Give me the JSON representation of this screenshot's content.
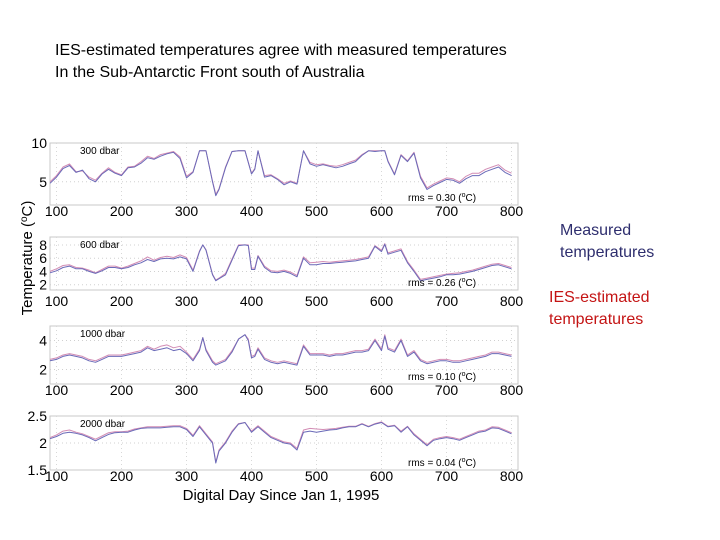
{
  "title": {
    "line1": "IES-estimated temperatures agree with measured temperatures",
    "line2": "In the Sub-Antarctic Front south of Australia"
  },
  "legend": {
    "measured_line1": "Measured",
    "measured_line2": "temperatures",
    "measured_color": "#2e2e6e",
    "ies_line1": "IES-estimated",
    "ies_line2": "temperatures",
    "ies_color": "#c41414"
  },
  "axes": {
    "ylabel": "Temperature (°C)",
    "xlabel": "Digital Day Since Jan 1, 1995"
  },
  "chart_data": [
    {
      "type": "line",
      "title": "300 dbar",
      "annotation": "rms = 0.30 (°C)",
      "xlabel": "Digital Day Since Jan 1, 1995",
      "ylabel": "Temperature (°C)",
      "xlim": [
        90,
        810
      ],
      "ylim": [
        2,
        10
      ],
      "xticks": [
        100,
        200,
        300,
        400,
        500,
        600,
        700,
        800
      ],
      "yticks": [
        5,
        10
      ],
      "grid": true,
      "x": [
        90,
        100,
        110,
        120,
        130,
        140,
        150,
        160,
        170,
        180,
        190,
        200,
        210,
        220,
        230,
        240,
        250,
        260,
        270,
        280,
        290,
        300,
        310,
        320,
        330,
        340,
        345,
        350,
        360,
        370,
        380,
        390,
        400,
        405,
        410,
        420,
        430,
        440,
        450,
        460,
        470,
        480,
        490,
        500,
        510,
        520,
        530,
        540,
        550,
        560,
        570,
        580,
        590,
        600,
        605,
        610,
        620,
        630,
        640,
        650,
        660,
        670,
        680,
        690,
        700,
        710,
        720,
        730,
        740,
        750,
        760,
        770,
        780,
        790,
        800
      ],
      "series": [
        {
          "name": "Measured temperatures",
          "color": "#6a6ab8",
          "values": [
            4.8,
            5.6,
            6.7,
            7.1,
            6.2,
            6.5,
            5.4,
            5.0,
            6.0,
            6.6,
            6.1,
            5.8,
            6.8,
            6.9,
            7.4,
            8.1,
            7.9,
            8.3,
            8.6,
            8.8,
            8.0,
            5.5,
            6.2,
            9.0,
            9.0,
            5.0,
            3.2,
            4.0,
            6.8,
            8.9,
            9.0,
            9.0,
            6.0,
            6.6,
            9.0,
            5.6,
            5.8,
            5.3,
            4.6,
            5.0,
            4.7,
            9.0,
            7.3,
            7.0,
            7.2,
            7.0,
            6.8,
            7.0,
            7.3,
            7.6,
            8.4,
            9.0,
            8.9,
            9.0,
            9.0,
            7.6,
            5.9,
            8.4,
            7.6,
            8.7,
            5.5,
            4.0,
            4.5,
            4.9,
            5.3,
            5.2,
            4.8,
            5.4,
            5.8,
            5.8,
            6.3,
            6.6,
            6.9,
            6.2,
            5.8
          ]
        },
        {
          "name": "IES-estimated temperatures",
          "color": "#d28cb4",
          "values": [
            5.0,
            5.8,
            6.9,
            7.3,
            6.3,
            6.4,
            5.6,
            5.2,
            6.1,
            6.8,
            6.2,
            5.9,
            6.9,
            7.0,
            7.6,
            8.3,
            8.0,
            8.5,
            8.7,
            8.9,
            8.2,
            5.7,
            6.3,
            9.0,
            9.0,
            5.1,
            3.4,
            4.1,
            6.9,
            8.9,
            9.0,
            9.0,
            6.1,
            6.7,
            9.0,
            5.8,
            5.9,
            5.4,
            4.8,
            5.1,
            4.8,
            9.0,
            7.5,
            7.2,
            7.3,
            7.1,
            7.0,
            7.2,
            7.5,
            7.8,
            8.5,
            9.0,
            9.0,
            9.0,
            9.0,
            7.7,
            6.0,
            8.5,
            7.7,
            8.8,
            5.7,
            4.2,
            4.7,
            5.1,
            5.5,
            5.4,
            5.0,
            5.7,
            6.1,
            6.1,
            6.6,
            6.9,
            7.2,
            6.5,
            6.1
          ]
        }
      ]
    },
    {
      "type": "line",
      "title": "600 dbar",
      "annotation": "rms = 0.26 (°C)",
      "xlim": [
        90,
        810
      ],
      "ylim": [
        1.2,
        9.2
      ],
      "xticks": [
        100,
        200,
        300,
        400,
        500,
        600,
        700,
        800
      ],
      "yticks": [
        2,
        4,
        6,
        8
      ],
      "grid": true,
      "x": [
        90,
        100,
        110,
        120,
        130,
        140,
        150,
        160,
        170,
        180,
        190,
        200,
        210,
        220,
        230,
        240,
        250,
        260,
        270,
        280,
        290,
        300,
        310,
        320,
        325,
        330,
        340,
        345,
        350,
        360,
        370,
        380,
        390,
        395,
        400,
        405,
        410,
        420,
        430,
        440,
        450,
        460,
        470,
        480,
        490,
        500,
        510,
        520,
        530,
        540,
        550,
        560,
        570,
        580,
        590,
        600,
        605,
        610,
        620,
        630,
        640,
        650,
        660,
        670,
        680,
        690,
        700,
        710,
        720,
        730,
        740,
        750,
        760,
        770,
        780,
        790,
        800
      ],
      "series": [
        {
          "name": "Measured temperatures",
          "color": "#6a6ab8",
          "values": [
            3.8,
            4.1,
            4.6,
            4.8,
            4.4,
            4.4,
            4.0,
            3.7,
            4.1,
            4.6,
            4.6,
            4.4,
            4.6,
            5.0,
            5.3,
            5.8,
            5.5,
            5.9,
            6.0,
            5.9,
            6.2,
            5.9,
            4.0,
            7.0,
            8.0,
            7.2,
            3.5,
            2.6,
            2.9,
            3.5,
            5.7,
            7.9,
            8.0,
            7.9,
            4.3,
            4.3,
            6.3,
            4.6,
            3.9,
            3.8,
            4.0,
            3.7,
            3.2,
            6.0,
            5.0,
            5.0,
            5.2,
            5.2,
            5.3,
            5.4,
            5.5,
            5.6,
            5.8,
            6.0,
            7.8,
            7.0,
            8.1,
            6.6,
            6.9,
            7.2,
            5.3,
            4.0,
            2.6,
            2.8,
            3.0,
            3.2,
            3.5,
            3.5,
            3.6,
            3.8,
            4.0,
            4.3,
            4.6,
            4.9,
            5.0,
            4.7,
            4.4
          ]
        },
        {
          "name": "IES-estimated temperatures",
          "color": "#d28cb4",
          "values": [
            4.0,
            4.4,
            4.9,
            5.0,
            4.6,
            4.5,
            4.2,
            3.8,
            4.3,
            4.8,
            4.8,
            4.5,
            4.8,
            5.2,
            5.6,
            6.2,
            5.7,
            6.1,
            6.3,
            6.1,
            6.5,
            6.1,
            4.2,
            7.1,
            8.0,
            7.3,
            3.6,
            2.7,
            3.0,
            3.7,
            5.9,
            8.0,
            8.0,
            8.0,
            4.5,
            4.5,
            6.4,
            4.8,
            4.1,
            4.0,
            4.2,
            3.9,
            3.4,
            6.2,
            5.3,
            5.4,
            5.5,
            5.4,
            5.5,
            5.6,
            5.7,
            5.8,
            6.0,
            6.2,
            7.9,
            7.2,
            8.2,
            6.8,
            7.1,
            7.4,
            5.5,
            4.2,
            2.8,
            3.0,
            3.2,
            3.4,
            3.6,
            3.7,
            3.8,
            4.0,
            4.2,
            4.5,
            4.8,
            5.1,
            5.2,
            4.9,
            4.6
          ]
        }
      ]
    },
    {
      "type": "line",
      "title": "1000 dbar",
      "annotation": "rms = 0.10 (°C)",
      "xlim": [
        90,
        810
      ],
      "ylim": [
        1,
        5
      ],
      "xticks": [
        100,
        200,
        300,
        400,
        500,
        600,
        700,
        800
      ],
      "yticks": [
        2,
        4
      ],
      "grid": true,
      "x": [
        90,
        100,
        110,
        120,
        130,
        140,
        150,
        160,
        170,
        180,
        190,
        200,
        210,
        220,
        230,
        240,
        250,
        260,
        270,
        280,
        290,
        300,
        310,
        320,
        325,
        330,
        340,
        345,
        350,
        360,
        370,
        380,
        390,
        395,
        400,
        405,
        410,
        420,
        430,
        440,
        450,
        460,
        470,
        480,
        490,
        500,
        510,
        520,
        530,
        540,
        550,
        560,
        570,
        580,
        590,
        600,
        605,
        610,
        620,
        630,
        640,
        650,
        660,
        670,
        680,
        690,
        700,
        710,
        720,
        730,
        740,
        750,
        760,
        770,
        780,
        790,
        800
      ],
      "series": [
        {
          "name": "Measured temperatures",
          "color": "#6a6ab8",
          "values": [
            2.6,
            2.7,
            2.9,
            3.0,
            2.9,
            2.8,
            2.6,
            2.5,
            2.7,
            2.9,
            2.9,
            2.9,
            3.0,
            3.1,
            3.2,
            3.5,
            3.3,
            3.4,
            3.5,
            3.3,
            3.4,
            3.1,
            2.6,
            3.3,
            4.2,
            3.3,
            2.5,
            2.3,
            2.4,
            2.6,
            3.2,
            4.1,
            4.4,
            4.0,
            2.8,
            2.9,
            3.4,
            2.7,
            2.5,
            2.4,
            2.5,
            2.4,
            2.3,
            3.6,
            3.0,
            3.0,
            3.0,
            2.9,
            3.0,
            3.0,
            3.1,
            3.2,
            3.2,
            3.3,
            4.0,
            3.3,
            4.3,
            3.4,
            3.2,
            4.0,
            2.9,
            3.2,
            2.6,
            2.4,
            2.5,
            2.6,
            2.6,
            2.5,
            2.5,
            2.6,
            2.7,
            2.8,
            2.9,
            3.1,
            3.1,
            3.0,
            2.9
          ]
        },
        {
          "name": "IES-estimated temperatures",
          "color": "#d28cb4",
          "values": [
            2.7,
            2.8,
            3.0,
            3.1,
            3.0,
            2.9,
            2.7,
            2.6,
            2.8,
            3.0,
            3.0,
            3.0,
            3.1,
            3.2,
            3.3,
            3.6,
            3.4,
            3.6,
            3.7,
            3.5,
            3.6,
            3.2,
            2.7,
            3.4,
            4.2,
            3.4,
            2.6,
            2.4,
            2.5,
            2.7,
            3.3,
            4.1,
            4.4,
            4.1,
            2.9,
            3.0,
            3.5,
            2.8,
            2.6,
            2.5,
            2.6,
            2.5,
            2.4,
            3.7,
            3.1,
            3.1,
            3.1,
            3.0,
            3.1,
            3.1,
            3.2,
            3.3,
            3.3,
            3.4,
            4.1,
            3.4,
            4.4,
            3.5,
            3.3,
            4.1,
            3.0,
            3.3,
            2.7,
            2.5,
            2.6,
            2.7,
            2.7,
            2.6,
            2.6,
            2.7,
            2.8,
            2.9,
            3.0,
            3.2,
            3.2,
            3.1,
            3.0
          ]
        }
      ]
    },
    {
      "type": "line",
      "title": "2000 dbar",
      "annotation": "rms = 0.04 (°C)",
      "xlim": [
        90,
        810
      ],
      "ylim": [
        1.5,
        2.5
      ],
      "xticks": [
        100,
        200,
        300,
        400,
        500,
        600,
        700,
        800
      ],
      "yticks": [
        1.5,
        2,
        2.5
      ],
      "grid": true,
      "x": [
        90,
        100,
        110,
        120,
        130,
        140,
        150,
        160,
        170,
        180,
        190,
        200,
        210,
        220,
        230,
        240,
        250,
        260,
        270,
        280,
        290,
        300,
        310,
        320,
        330,
        340,
        345,
        350,
        360,
        370,
        380,
        390,
        400,
        410,
        420,
        430,
        440,
        450,
        460,
        470,
        480,
        490,
        500,
        510,
        520,
        530,
        540,
        550,
        560,
        570,
        580,
        590,
        600,
        610,
        620,
        630,
        640,
        650,
        660,
        670,
        680,
        690,
        700,
        710,
        720,
        730,
        740,
        750,
        760,
        770,
        780,
        790,
        800
      ],
      "series": [
        {
          "name": "Measured temperatures",
          "color": "#6a6ab8",
          "values": [
            2.08,
            2.12,
            2.18,
            2.2,
            2.18,
            2.15,
            2.1,
            2.04,
            2.1,
            2.16,
            2.19,
            2.2,
            2.2,
            2.24,
            2.27,
            2.28,
            2.28,
            2.28,
            2.29,
            2.3,
            2.3,
            2.25,
            2.12,
            2.3,
            2.15,
            2.0,
            1.63,
            1.85,
            2.0,
            2.2,
            2.35,
            2.38,
            2.2,
            2.3,
            2.2,
            2.1,
            2.05,
            2.0,
            1.98,
            1.87,
            2.2,
            2.22,
            2.2,
            2.22,
            2.24,
            2.25,
            2.28,
            2.3,
            2.3,
            2.35,
            2.3,
            2.35,
            2.38,
            2.3,
            2.32,
            2.2,
            2.3,
            2.15,
            2.05,
            1.95,
            2.05,
            2.08,
            2.1,
            2.08,
            2.05,
            2.1,
            2.15,
            2.2,
            2.22,
            2.28,
            2.27,
            2.22,
            2.17
          ]
        },
        {
          "name": "IES-estimated temperatures",
          "color": "#d28cb4",
          "values": [
            2.1,
            2.15,
            2.22,
            2.24,
            2.2,
            2.17,
            2.12,
            2.07,
            2.13,
            2.19,
            2.21,
            2.21,
            2.22,
            2.26,
            2.28,
            2.3,
            2.3,
            2.3,
            2.31,
            2.32,
            2.32,
            2.27,
            2.14,
            2.32,
            2.17,
            2.02,
            1.65,
            1.87,
            2.02,
            2.22,
            2.36,
            2.38,
            2.22,
            2.32,
            2.22,
            2.12,
            2.07,
            2.02,
            2.0,
            1.9,
            2.24,
            2.27,
            2.26,
            2.25,
            2.26,
            2.27,
            2.29,
            2.31,
            2.31,
            2.36,
            2.31,
            2.36,
            2.39,
            2.31,
            2.33,
            2.22,
            2.31,
            2.17,
            2.07,
            1.97,
            2.07,
            2.1,
            2.12,
            2.1,
            2.07,
            2.12,
            2.17,
            2.22,
            2.24,
            2.3,
            2.29,
            2.24,
            2.19
          ]
        }
      ]
    }
  ]
}
